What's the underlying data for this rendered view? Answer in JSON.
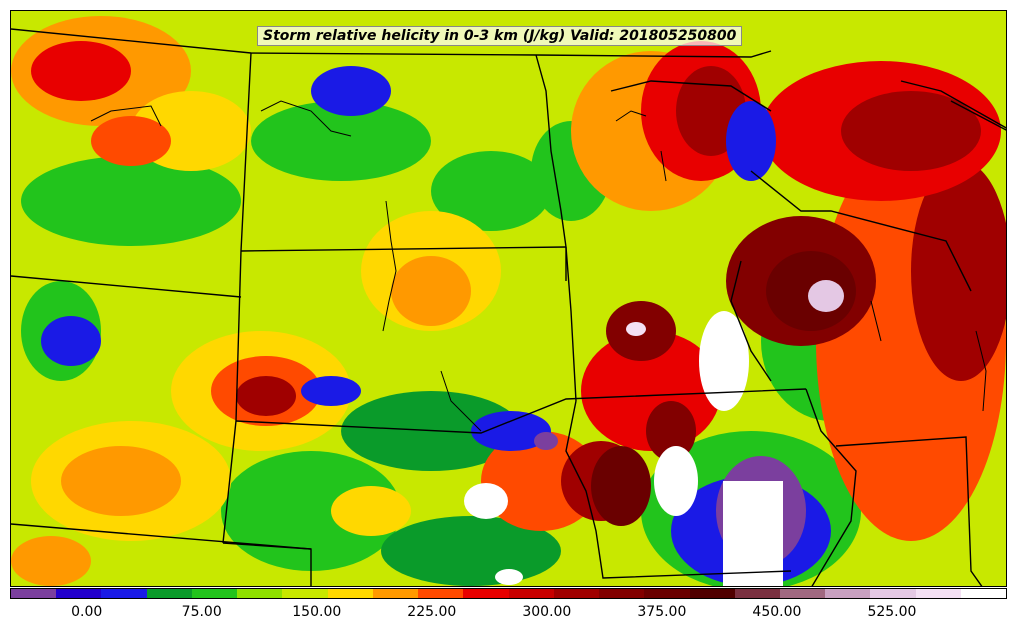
{
  "title": "Storm relative helicity in 0-3 km (J/kg) Valid: 201805250800",
  "colorbar": {
    "colors": [
      "#7b3f9e",
      "#2200cc",
      "#1a1ae6",
      "#0a9b2a",
      "#22c41c",
      "#8fe100",
      "#c8e800",
      "#ffd800",
      "#ff9900",
      "#ff4a00",
      "#e80000",
      "#c80000",
      "#a00000",
      "#820000",
      "#6a0000",
      "#500000",
      "#7a3040",
      "#a06880",
      "#c8a0c0",
      "#e4c8e4",
      "#f4e0f4",
      "#ffffff"
    ],
    "ticks": [
      {
        "label": "0.00",
        "value": 0
      },
      {
        "label": "75.00",
        "value": 75
      },
      {
        "label": "150.00",
        "value": 150
      },
      {
        "label": "225.00",
        "value": 225
      },
      {
        "label": "300.00",
        "value": 300
      },
      {
        "label": "375.00",
        "value": 375
      },
      {
        "label": "450.00",
        "value": 450
      },
      {
        "label": "525.00",
        "value": 525
      }
    ],
    "min": -50,
    "max": 600
  }
}
